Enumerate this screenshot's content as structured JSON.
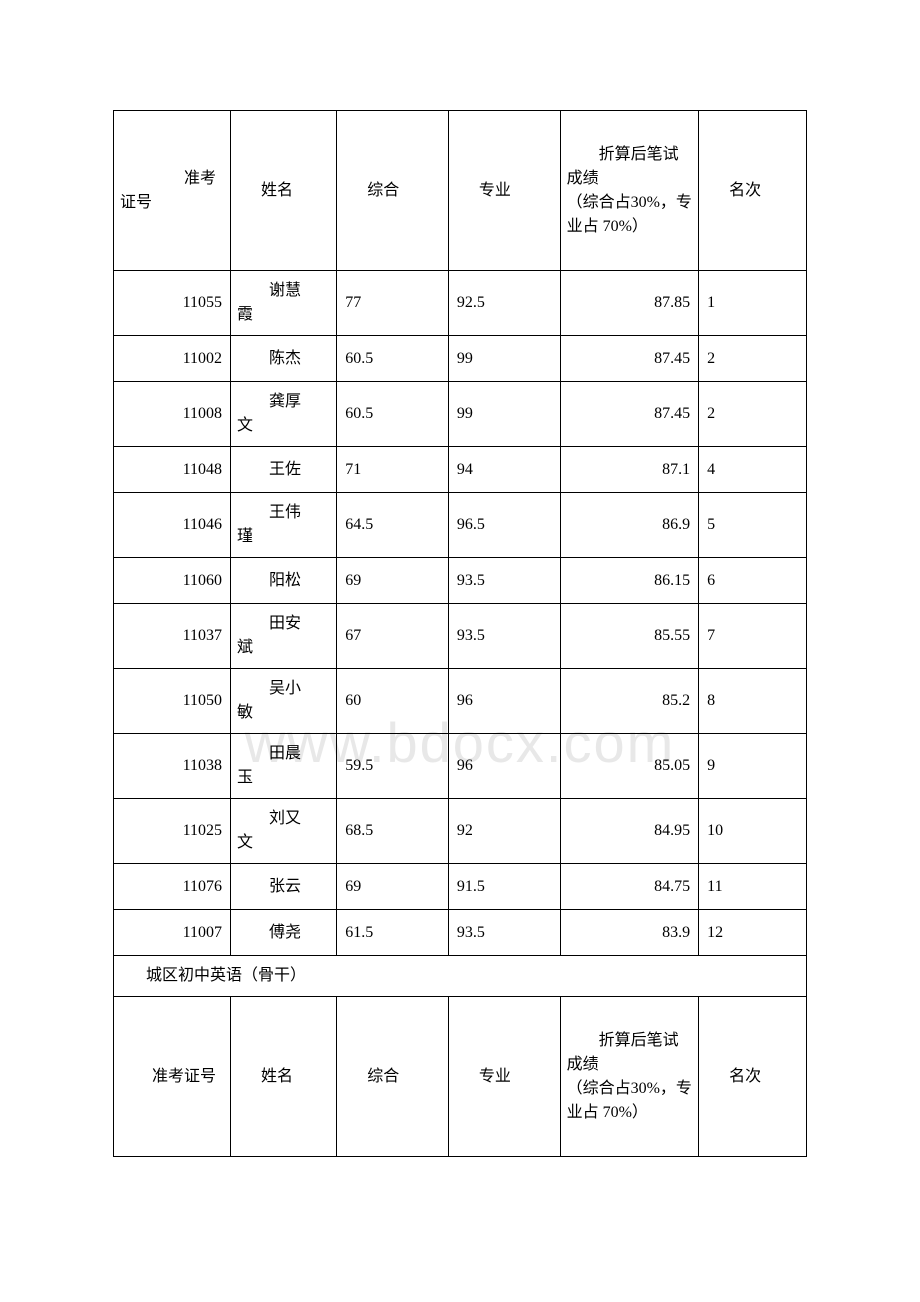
{
  "watermark": "www.bdocx.com",
  "table1": {
    "headers": {
      "id": "准考证号",
      "name": "姓名",
      "comprehensive": "综合",
      "specialty": "专业",
      "score": "折算后笔试成绩",
      "score_note": "（综合占30%，专业占 70%）",
      "rank": "名次"
    },
    "rows": [
      {
        "id": "11055",
        "name": "谢慧霞",
        "comp": "77",
        "spec": "92.5",
        "score": "87.85",
        "rank": "1"
      },
      {
        "id": "11002",
        "name": "陈杰",
        "comp": "60.5",
        "spec": "99",
        "score": "87.45",
        "rank": "2"
      },
      {
        "id": "11008",
        "name": "龚厚文",
        "comp": "60.5",
        "spec": "99",
        "score": "87.45",
        "rank": "2"
      },
      {
        "id": "11048",
        "name": "王佐",
        "comp": "71",
        "spec": "94",
        "score": "87.1",
        "rank": "4"
      },
      {
        "id": "11046",
        "name": "王伟瑾",
        "comp": "64.5",
        "spec": "96.5",
        "score": "86.9",
        "rank": "5"
      },
      {
        "id": "11060",
        "name": "阳松",
        "comp": "69",
        "spec": "93.5",
        "score": "86.15",
        "rank": "6"
      },
      {
        "id": "11037",
        "name": "田安斌",
        "comp": "67",
        "spec": "93.5",
        "score": "85.55",
        "rank": "7"
      },
      {
        "id": "11050",
        "name": "吴小敏",
        "comp": "60",
        "spec": "96",
        "score": "85.2",
        "rank": "8"
      },
      {
        "id": "11038",
        "name": "田晨玉",
        "comp": "59.5",
        "spec": "96",
        "score": "85.05",
        "rank": "9"
      },
      {
        "id": "11025",
        "name": "刘又文",
        "comp": "68.5",
        "spec": "92",
        "score": "84.95",
        "rank": "10"
      },
      {
        "id": "11076",
        "name": "张云",
        "comp": "69",
        "spec": "91.5",
        "score": "84.75",
        "rank": "11"
      },
      {
        "id": "11007",
        "name": "傅尧",
        "comp": "61.5",
        "spec": "93.5",
        "score": "83.9",
        "rank": "12"
      }
    ]
  },
  "section_title": "城区初中英语（骨干）",
  "table2": {
    "headers": {
      "id": "准考证号",
      "name": "姓名",
      "comprehensive": "综合",
      "specialty": "专业",
      "score": "折算后笔试成绩",
      "score_note": "（综合占30%，专业占 70%）",
      "rank": "名次"
    }
  },
  "style": {
    "border_color": "#000000",
    "text_color": "#000000",
    "background_color": "#ffffff",
    "watermark_color": "#e8e8e8",
    "font_size": 16
  }
}
